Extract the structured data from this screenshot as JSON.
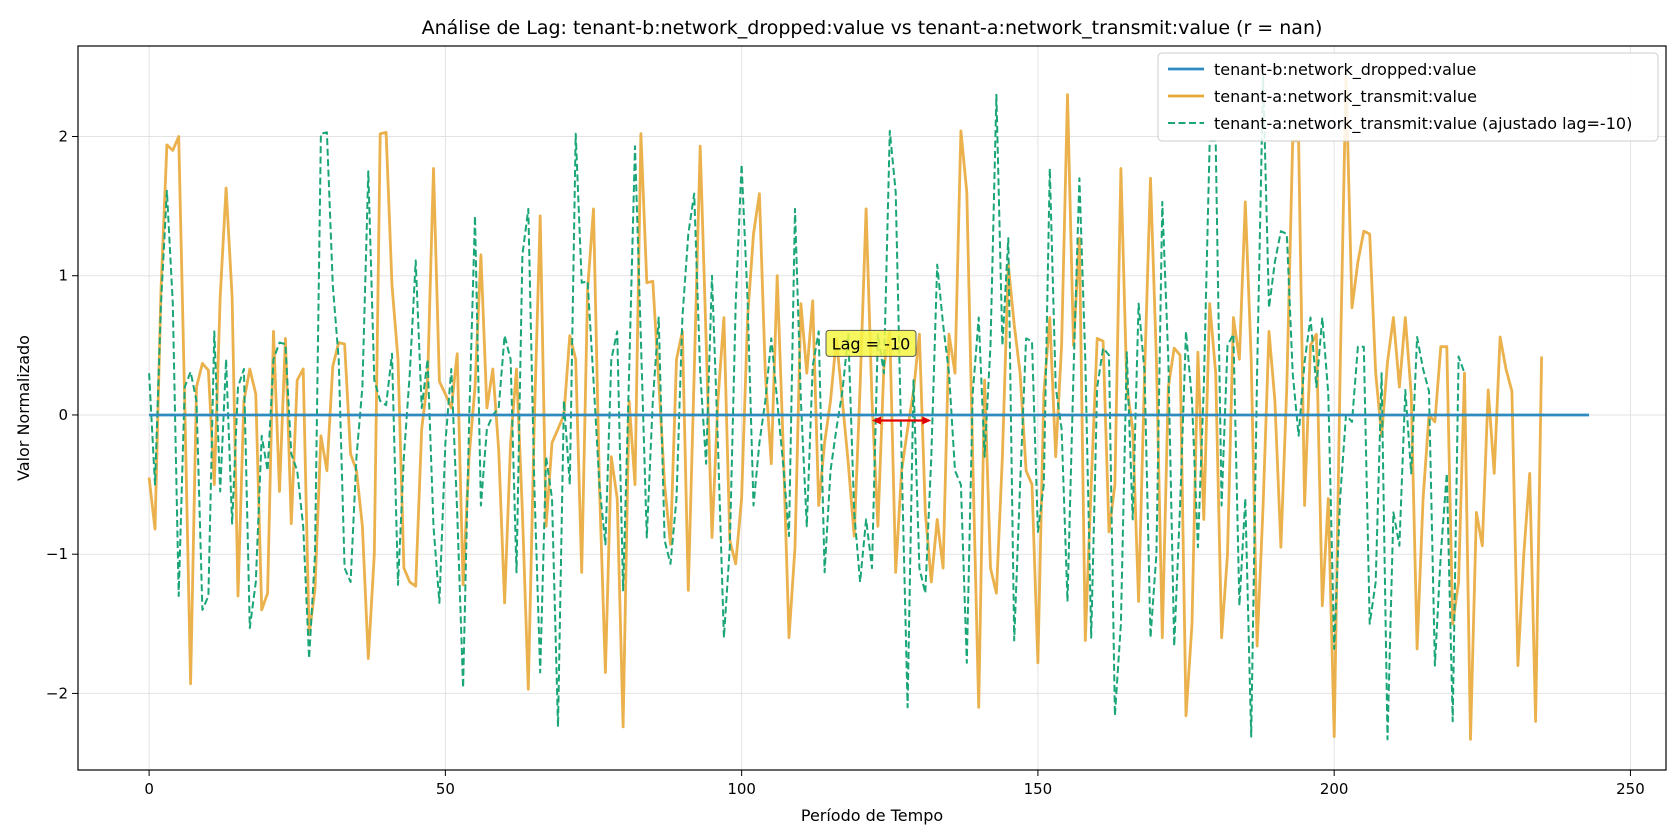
{
  "chart_data": {
    "type": "line",
    "title": "Análise de Lag: tenant-b:network_dropped:value vs tenant-a:network_transmit:value (r = nan)",
    "xlabel": "Período de Tempo",
    "ylabel": "Valor Normalizado",
    "xlim": [
      -12,
      256
    ],
    "ylim": [
      -2.55,
      2.65
    ],
    "xticks": [
      0,
      50,
      100,
      150,
      200,
      250
    ],
    "xtick_labels": [
      "0",
      "50",
      "100",
      "150",
      "200",
      "250"
    ],
    "yticks": [
      -2,
      -1,
      0,
      1,
      2
    ],
    "ytick_labels": [
      "−2",
      "−1",
      "0",
      "1",
      "2"
    ],
    "grid": true,
    "legend_position": "top-right",
    "annotation": {
      "text": "Lag = -10",
      "x": 122,
      "y": 0.5,
      "arrow_from": 122,
      "arrow_to": 132,
      "arrow_y": -0.04
    },
    "series": [
      {
        "name": "tenant-b:network_dropped:value",
        "color": "#2e8bc0",
        "style": "solid",
        "x_start": 0,
        "values": [
          0,
          0
        ]
      },
      {
        "name": "tenant-a:network_transmit:value",
        "color": "#e8a838",
        "style": "solid",
        "x_start": 0,
        "values": [
          -0.45,
          -0.82,
          0.9,
          1.94,
          1.9,
          2.0,
          0.1,
          -1.93,
          0.2,
          0.37,
          0.32,
          -0.5,
          0.85,
          1.63,
          0.85,
          -1.3,
          0.1,
          0.33,
          0.15,
          -1.4,
          -1.28,
          0.6,
          -0.55,
          0.55,
          -0.78,
          0.25,
          0.33,
          -1.58,
          -1.25,
          -0.15,
          -0.4,
          0.35,
          0.52,
          0.51,
          -0.28,
          -0.4,
          -0.8,
          -1.75,
          -1.0,
          2.02,
          2.03,
          0.93,
          0.4,
          -1.1,
          -1.2,
          -1.23,
          -0.1,
          0.25,
          1.77,
          0.24,
          0.15,
          0.05,
          0.44,
          -1.22,
          -0.3,
          0.2,
          1.15,
          0.05,
          0.33,
          -0.25,
          -1.35,
          -0.2,
          0.33,
          -0.7,
          -1.97,
          -0.05,
          1.43,
          -0.8,
          -0.2,
          -0.1,
          0.0,
          0.57,
          0.4,
          -1.13,
          0.9,
          1.48,
          -0.5,
          -1.85,
          -0.3,
          -0.6,
          -2.24,
          0.1,
          -0.5,
          2.02,
          0.95,
          0.96,
          0.25,
          -0.5,
          -0.93,
          0.4,
          0.6,
          -1.26,
          0.3,
          1.93,
          0.54,
          -0.88,
          0.1,
          0.7,
          -0.9,
          -1.07,
          -0.6,
          0.7,
          1.3,
          1.59,
          0.3,
          -0.35,
          1.0,
          -0.2,
          -1.6,
          -0.95,
          0.8,
          0.3,
          0.82,
          -0.65,
          -0.2,
          0.1,
          0.55,
          0.1,
          -0.35,
          -0.87,
          0.2,
          1.48,
          0.1,
          -0.8,
          0.35,
          0.6,
          -1.13,
          -0.4,
          -0.1,
          0.17,
          0.58,
          -0.7,
          -1.2,
          -0.75,
          -1.1,
          0.58,
          0.3,
          2.04,
          1.6,
          -0.3,
          -2.1,
          0.25,
          -1.1,
          -1.28,
          -0.3,
          1.08,
          0.65,
          0.3,
          -0.4,
          -0.5,
          -1.78,
          0.15,
          0.7,
          -0.3,
          0.5,
          2.3,
          0.5,
          1.27,
          -1.62,
          -0.5,
          0.55,
          0.53,
          -0.84,
          -0.5,
          1.77,
          0.2,
          -0.1,
          -1.34,
          0.3,
          1.7,
          0.4,
          -1.6,
          0.2,
          0.48,
          0.43,
          -2.16,
          -1.5,
          0.45,
          -0.75,
          0.8,
          0.3,
          -1.6,
          -1.0,
          0.7,
          0.4,
          1.53,
          0.4,
          -1.66,
          -0.65,
          0.6,
          0.1,
          -0.95,
          0.2,
          1.97,
          1.97,
          -0.65,
          0.5,
          0.58,
          -1.37,
          -0.6,
          -2.31,
          0.3,
          2.44,
          0.77,
          1.1,
          1.32,
          1.3,
          0.3,
          -0.15,
          0.38,
          0.7,
          0.2,
          0.7,
          0.15,
          -1.68,
          -0.6,
          0.0,
          -0.05,
          0.49,
          0.49,
          -1.5,
          -1.2,
          0.3,
          -2.33,
          -0.7,
          -0.94,
          0.18,
          -0.42,
          0.56,
          0.33,
          0.17,
          -1.8,
          -1.0,
          -0.42,
          -2.2,
          0.42
        ]
      },
      {
        "name": "tenant-a:network_transmit:value (ajustado lag=-10)",
        "color": "#1aa579",
        "style": "dashed",
        "x_start": 0,
        "values": [
          0.3,
          -0.5,
          0.8,
          1.61,
          0.8,
          -1.3,
          0.2,
          0.31,
          0.1,
          -1.4,
          -1.3,
          0.6,
          -0.55,
          0.4,
          -0.78,
          0.2,
          0.33,
          -1.53,
          -1.2,
          -0.15,
          -0.4,
          0.4,
          0.52,
          0.51,
          -0.28,
          -0.4,
          -0.8,
          -1.75,
          -1.0,
          2.02,
          2.03,
          0.93,
          0.4,
          -1.1,
          -1.2,
          -0.3,
          0.2,
          1.75,
          0.25,
          0.1,
          0.07,
          0.44,
          -1.22,
          -0.3,
          0.3,
          1.11,
          0.05,
          0.4,
          -0.8,
          -1.35,
          -0.2,
          0.33,
          -0.7,
          -1.96,
          -0.05,
          1.43,
          -0.65,
          -0.1,
          0.0,
          0.05,
          0.57,
          0.4,
          -1.13,
          1.15,
          1.48,
          -0.5,
          -1.85,
          -0.3,
          -0.6,
          -2.24,
          0.1,
          -0.5,
          2.02,
          0.95,
          0.96,
          0.25,
          -0.5,
          -0.93,
          0.4,
          0.6,
          -1.26,
          0.3,
          1.93,
          0.54,
          -0.88,
          0.1,
          0.7,
          -0.9,
          -1.07,
          -0.6,
          0.7,
          1.3,
          1.59,
          0.3,
          -0.35,
          1.0,
          -0.2,
          -1.6,
          -0.95,
          0.8,
          1.8,
          0.82,
          -0.65,
          -0.2,
          0.1,
          0.55,
          0.1,
          -0.35,
          -0.87,
          1.48,
          0.1,
          -0.8,
          0.35,
          0.6,
          -1.13,
          -0.4,
          -0.1,
          0.17,
          0.58,
          -0.7,
          -1.2,
          -0.75,
          -1.1,
          0.58,
          0.3,
          2.04,
          1.6,
          -0.3,
          -2.1,
          0.25,
          -1.1,
          -1.28,
          -0.3,
          1.08,
          0.65,
          0.3,
          -0.4,
          -0.5,
          -1.78,
          0.15,
          0.7,
          -0.3,
          0.5,
          2.3,
          0.5,
          1.27,
          -1.62,
          -0.5,
          0.55,
          0.53,
          -0.84,
          -0.5,
          1.77,
          0.2,
          -0.1,
          -1.34,
          0.3,
          1.7,
          0.4,
          -1.6,
          0.2,
          0.48,
          0.43,
          -2.16,
          -1.5,
          0.45,
          -0.75,
          0.8,
          0.3,
          -1.6,
          -1.0,
          1.53,
          0.4,
          -1.66,
          -0.65,
          0.6,
          0.1,
          -0.95,
          0.2,
          1.97,
          1.97,
          -0.65,
          0.5,
          0.58,
          -1.37,
          -0.6,
          -2.31,
          0.3,
          2.44,
          0.77,
          1.1,
          1.32,
          1.3,
          0.3,
          -0.15,
          0.38,
          0.7,
          0.2,
          0.7,
          0.15,
          -1.68,
          -0.6,
          0.0,
          -0.05,
          0.49,
          0.49,
          -1.5,
          -1.2,
          0.3,
          -2.33,
          -0.7,
          -0.94,
          0.18,
          -0.42,
          0.56,
          0.33,
          0.17,
          -1.8,
          -1.0,
          -0.42,
          -2.2,
          0.42,
          0.3
        ]
      }
    ]
  }
}
